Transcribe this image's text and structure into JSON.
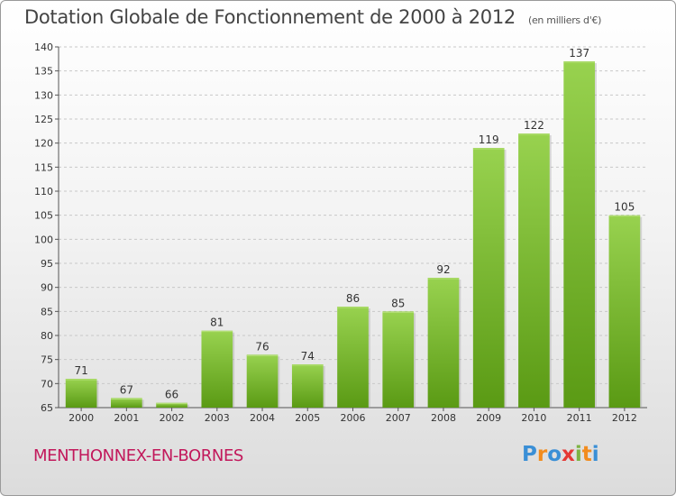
{
  "header": {
    "title": "Dotation Globale de Fonctionnement de 2000 à 2012",
    "subtitle": "(en milliers d'€)"
  },
  "footer": {
    "place": "MENTHONNEX-EN-BORNES",
    "logo": [
      "P",
      "r",
      "o",
      "x",
      "i",
      "t",
      "i"
    ],
    "logo_colors": [
      "#3a8fd6",
      "#f28c1e",
      "#3a8fd6",
      "#e53935",
      "#7cb342",
      "#f28c1e",
      "#3a8fd6"
    ]
  },
  "chart_data": {
    "type": "bar",
    "title": "Dotation Globale de Fonctionnement de 2000 à 2012",
    "subtitle": "(en milliers d'€)",
    "categories": [
      "2000",
      "2001",
      "2002",
      "2003",
      "2004",
      "2005",
      "2006",
      "2007",
      "2008",
      "2009",
      "2010",
      "2011",
      "2012"
    ],
    "values": [
      71,
      67,
      66,
      81,
      76,
      74,
      86,
      85,
      92,
      119,
      122,
      137,
      105
    ],
    "ylim": [
      65,
      140
    ],
    "yticks": [
      65,
      70,
      75,
      80,
      85,
      90,
      95,
      100,
      105,
      110,
      115,
      120,
      125,
      130,
      135,
      140
    ],
    "grid": true,
    "bar_color_top": "#98d24f",
    "bar_color_bottom": "#5a9a14"
  }
}
